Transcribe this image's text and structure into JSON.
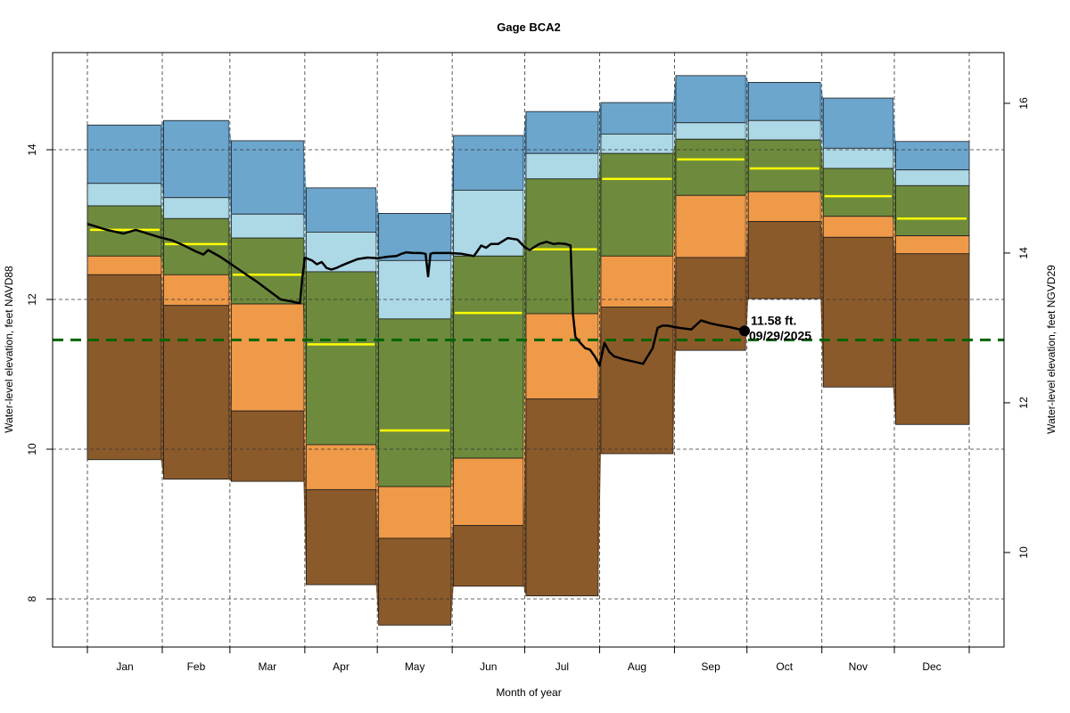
{
  "chart_data": {
    "type": "area",
    "title": "Gage BCA2",
    "xlabel": "Month of year",
    "ylabel": "Water-level elevation, feet NAVD88",
    "ylabel_right": "Water-level elevation, feet NGVD29",
    "categories": [
      "Jan",
      "Feb",
      "Mar",
      "Apr",
      "May",
      "Jun",
      "Jul",
      "Aug",
      "Sep",
      "Oct",
      "Nov",
      "Dec"
    ],
    "ylim": [
      7.4,
      15.4
    ],
    "yticks": [
      8,
      10,
      12,
      14
    ],
    "ytick_labels": [
      "8",
      "10",
      "12",
      "14"
    ],
    "right_axis_offset": 1.38,
    "yticks_right": [
      10,
      12,
      14,
      16
    ],
    "ytick_labels_right": [
      "10",
      "12",
      "14",
      "16"
    ],
    "grid": true,
    "band_colors": {
      "very_high": "#6ca6cd",
      "high": "#add8e6",
      "normal": "#6e8b3d",
      "low": "#ee9a49",
      "very_low": "#8b5a2b",
      "median": "#ffff00",
      "reference_line": "#006400",
      "observed": "#000000"
    },
    "bands": {
      "p_max": [
        14.33,
        14.39,
        14.12,
        13.49,
        13.15,
        14.19,
        14.51,
        14.63,
        14.99,
        14.9,
        14.69,
        14.11
      ],
      "p_90": [
        13.55,
        13.36,
        13.14,
        12.9,
        12.52,
        13.46,
        13.95,
        14.21,
        14.36,
        14.39,
        14.02,
        13.73
      ],
      "p_75": [
        13.25,
        13.08,
        12.82,
        12.37,
        11.74,
        12.58,
        13.61,
        13.95,
        14.14,
        14.13,
        13.75,
        13.52
      ],
      "p_25": [
        12.58,
        12.33,
        11.94,
        10.06,
        9.5,
        9.88,
        11.81,
        12.58,
        13.39,
        13.44,
        13.11,
        12.85
      ],
      "p_10": [
        12.33,
        11.92,
        10.51,
        9.46,
        8.81,
        8.98,
        10.67,
        11.9,
        12.56,
        13.04,
        12.83,
        12.61
      ],
      "p_min": [
        9.86,
        9.6,
        9.57,
        8.19,
        7.65,
        8.17,
        8.04,
        9.94,
        11.32,
        12.01,
        10.83,
        10.33
      ],
      "median": [
        12.93,
        12.74,
        12.33,
        11.4,
        10.25,
        11.82,
        12.67,
        13.61,
        13.87,
        13.75,
        13.38,
        13.08
      ]
    },
    "reference_line_value": 11.46,
    "observed_series": {
      "name": "Daily water level",
      "day_of_year": [
        0,
        8,
        15,
        20,
        22,
        25,
        30,
        35,
        40,
        45,
        48,
        50,
        55,
        60,
        65,
        70,
        75,
        80,
        85,
        88,
        89,
        90,
        93,
        95,
        97,
        99,
        101,
        103,
        105,
        108,
        112,
        116,
        120,
        124,
        128,
        130,
        132,
        135,
        138,
        140,
        141,
        142,
        143,
        147,
        150,
        155,
        160,
        163,
        165,
        167,
        170,
        174,
        178,
        181,
        183,
        187,
        190,
        193,
        195,
        198,
        200,
        201,
        202,
        204,
        206,
        208,
        210,
        212,
        214,
        216,
        218,
        222,
        226,
        230,
        234,
        236,
        238,
        240,
        245,
        250,
        254,
        258,
        261,
        266,
        270,
        272
      ],
      "values": [
        13.01,
        12.93,
        12.88,
        12.93,
        12.91,
        12.88,
        12.83,
        12.79,
        12.72,
        12.64,
        12.6,
        12.66,
        12.57,
        12.46,
        12.35,
        12.24,
        12.12,
        12.0,
        11.97,
        11.95,
        12.3,
        12.56,
        12.52,
        12.47,
        12.5,
        12.42,
        12.4,
        12.42,
        12.45,
        12.49,
        12.54,
        12.56,
        12.55,
        12.57,
        12.58,
        12.61,
        12.63,
        12.62,
        12.62,
        12.61,
        12.31,
        12.61,
        12.62,
        12.62,
        12.62,
        12.61,
        12.58,
        12.72,
        12.69,
        12.74,
        12.74,
        12.82,
        12.8,
        12.7,
        12.66,
        12.74,
        12.77,
        12.74,
        12.75,
        12.74,
        12.72,
        11.8,
        11.5,
        11.42,
        11.35,
        11.33,
        11.24,
        11.12,
        11.42,
        11.3,
        11.24,
        11.2,
        11.17,
        11.14,
        11.35,
        11.62,
        11.65,
        11.65,
        11.62,
        11.6,
        11.72,
        11.68,
        11.66,
        11.63,
        11.6,
        11.58
      ]
    },
    "current_point": {
      "value": 11.58,
      "label_value": "11.58 ft.",
      "label_date": "09/29/2025"
    },
    "days_in_year": 365,
    "month_start_days": [
      0,
      31,
      59,
      90,
      120,
      151,
      181,
      212,
      243,
      273,
      304,
      334,
      365
    ]
  }
}
